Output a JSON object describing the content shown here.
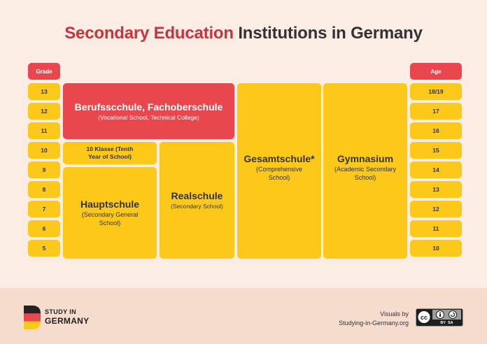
{
  "title": {
    "accent": "Secondary Education",
    "rest": "Institutions in Germany"
  },
  "headers": {
    "grade": "Grade",
    "age": "Age"
  },
  "grades": [
    "13",
    "12",
    "11",
    "10",
    "9",
    "8",
    "7",
    "6",
    "5"
  ],
  "ages": [
    "18/19",
    "17",
    "16",
    "15",
    "14",
    "13",
    "12",
    "11",
    "10"
  ],
  "schools": {
    "berufsschule": {
      "name": "Berufsscchule, Fachoberschule",
      "desc": "(Vocational School, Technical College)"
    },
    "klasse10": {
      "line1": "10 Klasse (Tenth",
      "line2": "Year of School)"
    },
    "hauptschule": {
      "name": "Hauptschule",
      "line1": "(Secondary General",
      "line2": "School)"
    },
    "realschule": {
      "name": "Realschule",
      "desc": "(Secondary School)"
    },
    "gesamtschule": {
      "name": "Gesamtschule*",
      "line1": "(Comprehensive",
      "line2": "School)"
    },
    "gymnasium": {
      "name": "Gymnasium",
      "line1": "(Academic Secondary",
      "line2": "School)"
    }
  },
  "footer": {
    "logo_line1": "STUDY IN",
    "logo_line2": "GERMANY",
    "credit_line1": "Visuals by",
    "credit_line2": "Studying-in-Germany.org",
    "license": "BY  SA",
    "license_badge": "cc"
  },
  "colors": {
    "red": "#e8484d",
    "yellow": "#fcc91b",
    "accent_title": "#c9333b",
    "background": "#fbece4"
  }
}
